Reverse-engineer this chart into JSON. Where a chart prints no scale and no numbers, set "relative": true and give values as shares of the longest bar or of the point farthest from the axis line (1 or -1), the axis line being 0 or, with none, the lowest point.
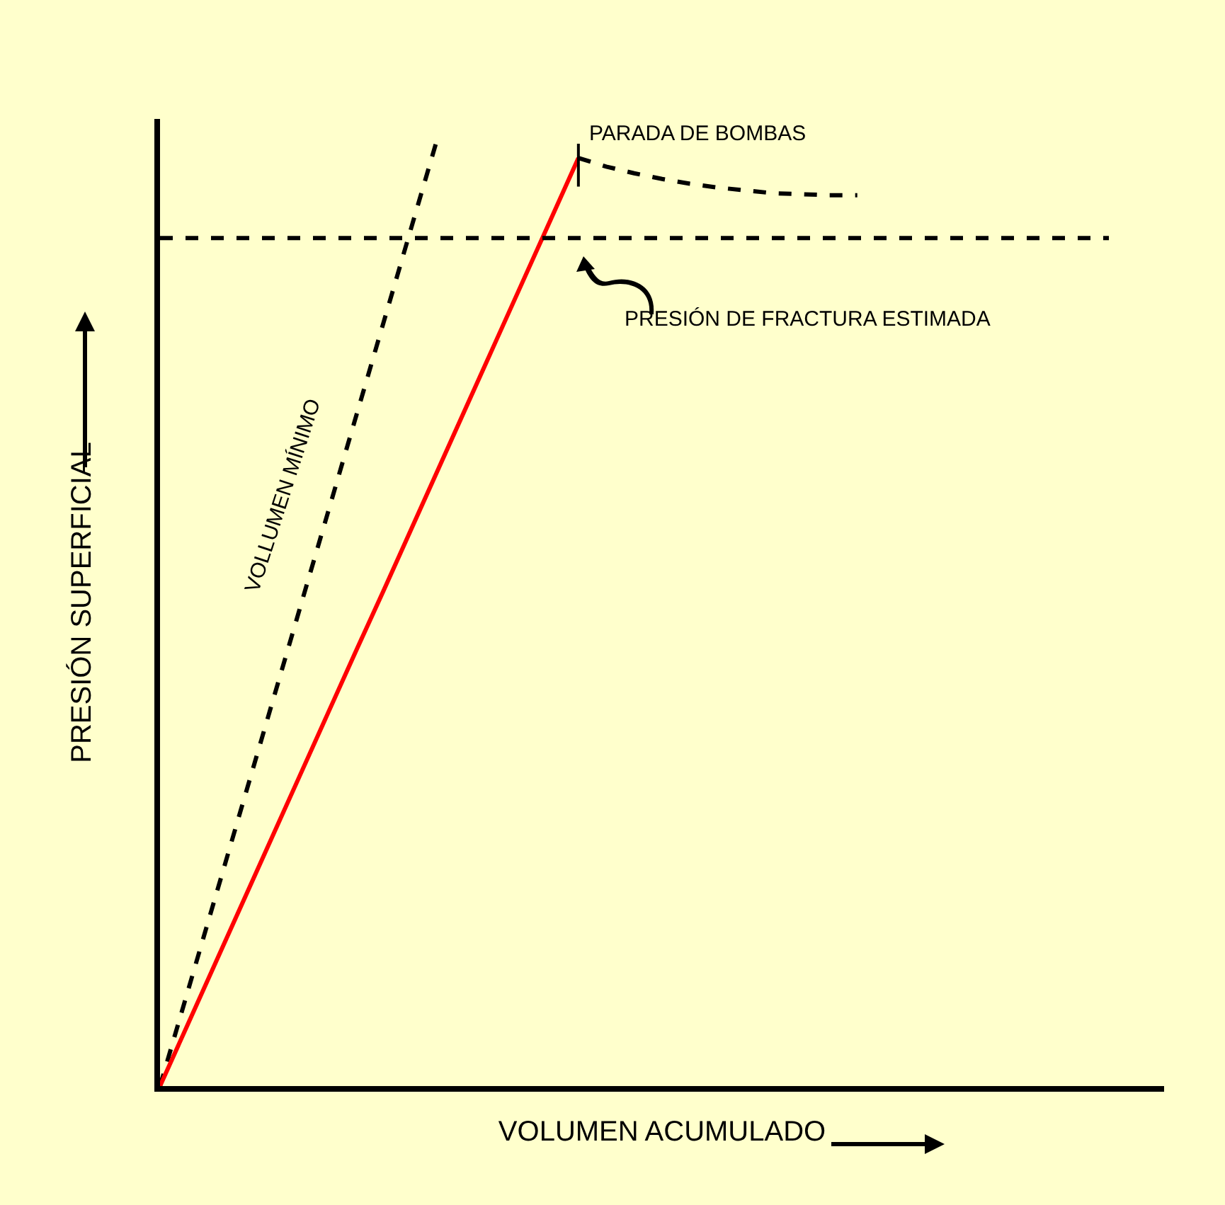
{
  "chart_data": {
    "type": "line",
    "relative": true,
    "xlabel": "VOLUMEN ACUMULADO",
    "ylabel": "PRESIÓN SUPERFICIAL",
    "marker": "none",
    "categories": [
      null,
      null,
      null,
      null,
      null,
      null,
      null,
      null,
      null,
      null,
      null,
      null,
      null,
      null,
      null,
      null,
      null,
      null,
      null,
      null,
      null,
      null,
      null,
      null,
      null,
      null,
      null,
      null,
      null,
      null,
      null,
      null,
      null,
      null,
      null,
      null,
      null
    ],
    "series": [
      {
        "name": "VOLLUMEN MÍNIMO",
        "color": "#000000",
        "line_style": "dashed",
        "values": [
          0,
          0.1,
          0.2,
          0.3,
          0.4,
          0.5,
          0.6,
          0.7,
          0.8,
          0.9,
          1,
          null,
          null,
          null,
          null,
          null,
          null,
          null,
          null,
          null,
          null,
          null,
          null,
          null,
          null,
          null,
          null,
          null,
          null,
          null,
          null,
          null,
          null,
          null,
          null,
          null,
          null
        ]
      },
      {
        "color": "#ff0000",
        "line_style": "solid",
        "values": [
          0,
          0.065,
          0.13,
          0.195,
          0.26,
          0.325,
          0.39,
          0.455,
          0.519,
          0.584,
          0.649,
          0.714,
          0.779,
          0.844,
          0.909,
          0.974,
          null,
          null,
          null,
          null,
          null,
          null,
          null,
          null,
          null,
          null,
          null,
          null,
          null,
          null,
          null,
          null,
          null,
          null,
          null,
          null,
          null
        ]
      },
      {
        "color": "#000000",
        "line_style": "dashed",
        "values": [
          null,
          null,
          null,
          null,
          null,
          null,
          null,
          null,
          null,
          null,
          null,
          null,
          null,
          null,
          null,
          0.974,
          0.965,
          0.958,
          0.952,
          0.947,
          0.943,
          0.94,
          0.937,
          0.936,
          0.935,
          0.935,
          null,
          null,
          null,
          null,
          null,
          null,
          null,
          null,
          null,
          null,
          null
        ]
      }
    ],
    "ref_lines": [
      {
        "axis": "y",
        "value": 0.89,
        "label": "PRESIÓN DE FRACTURA ESTIMADA",
        "color": "#000000",
        "line_style": "dashed"
      }
    ],
    "annotations": [
      "PARADA DE BOMBAS"
    ]
  }
}
